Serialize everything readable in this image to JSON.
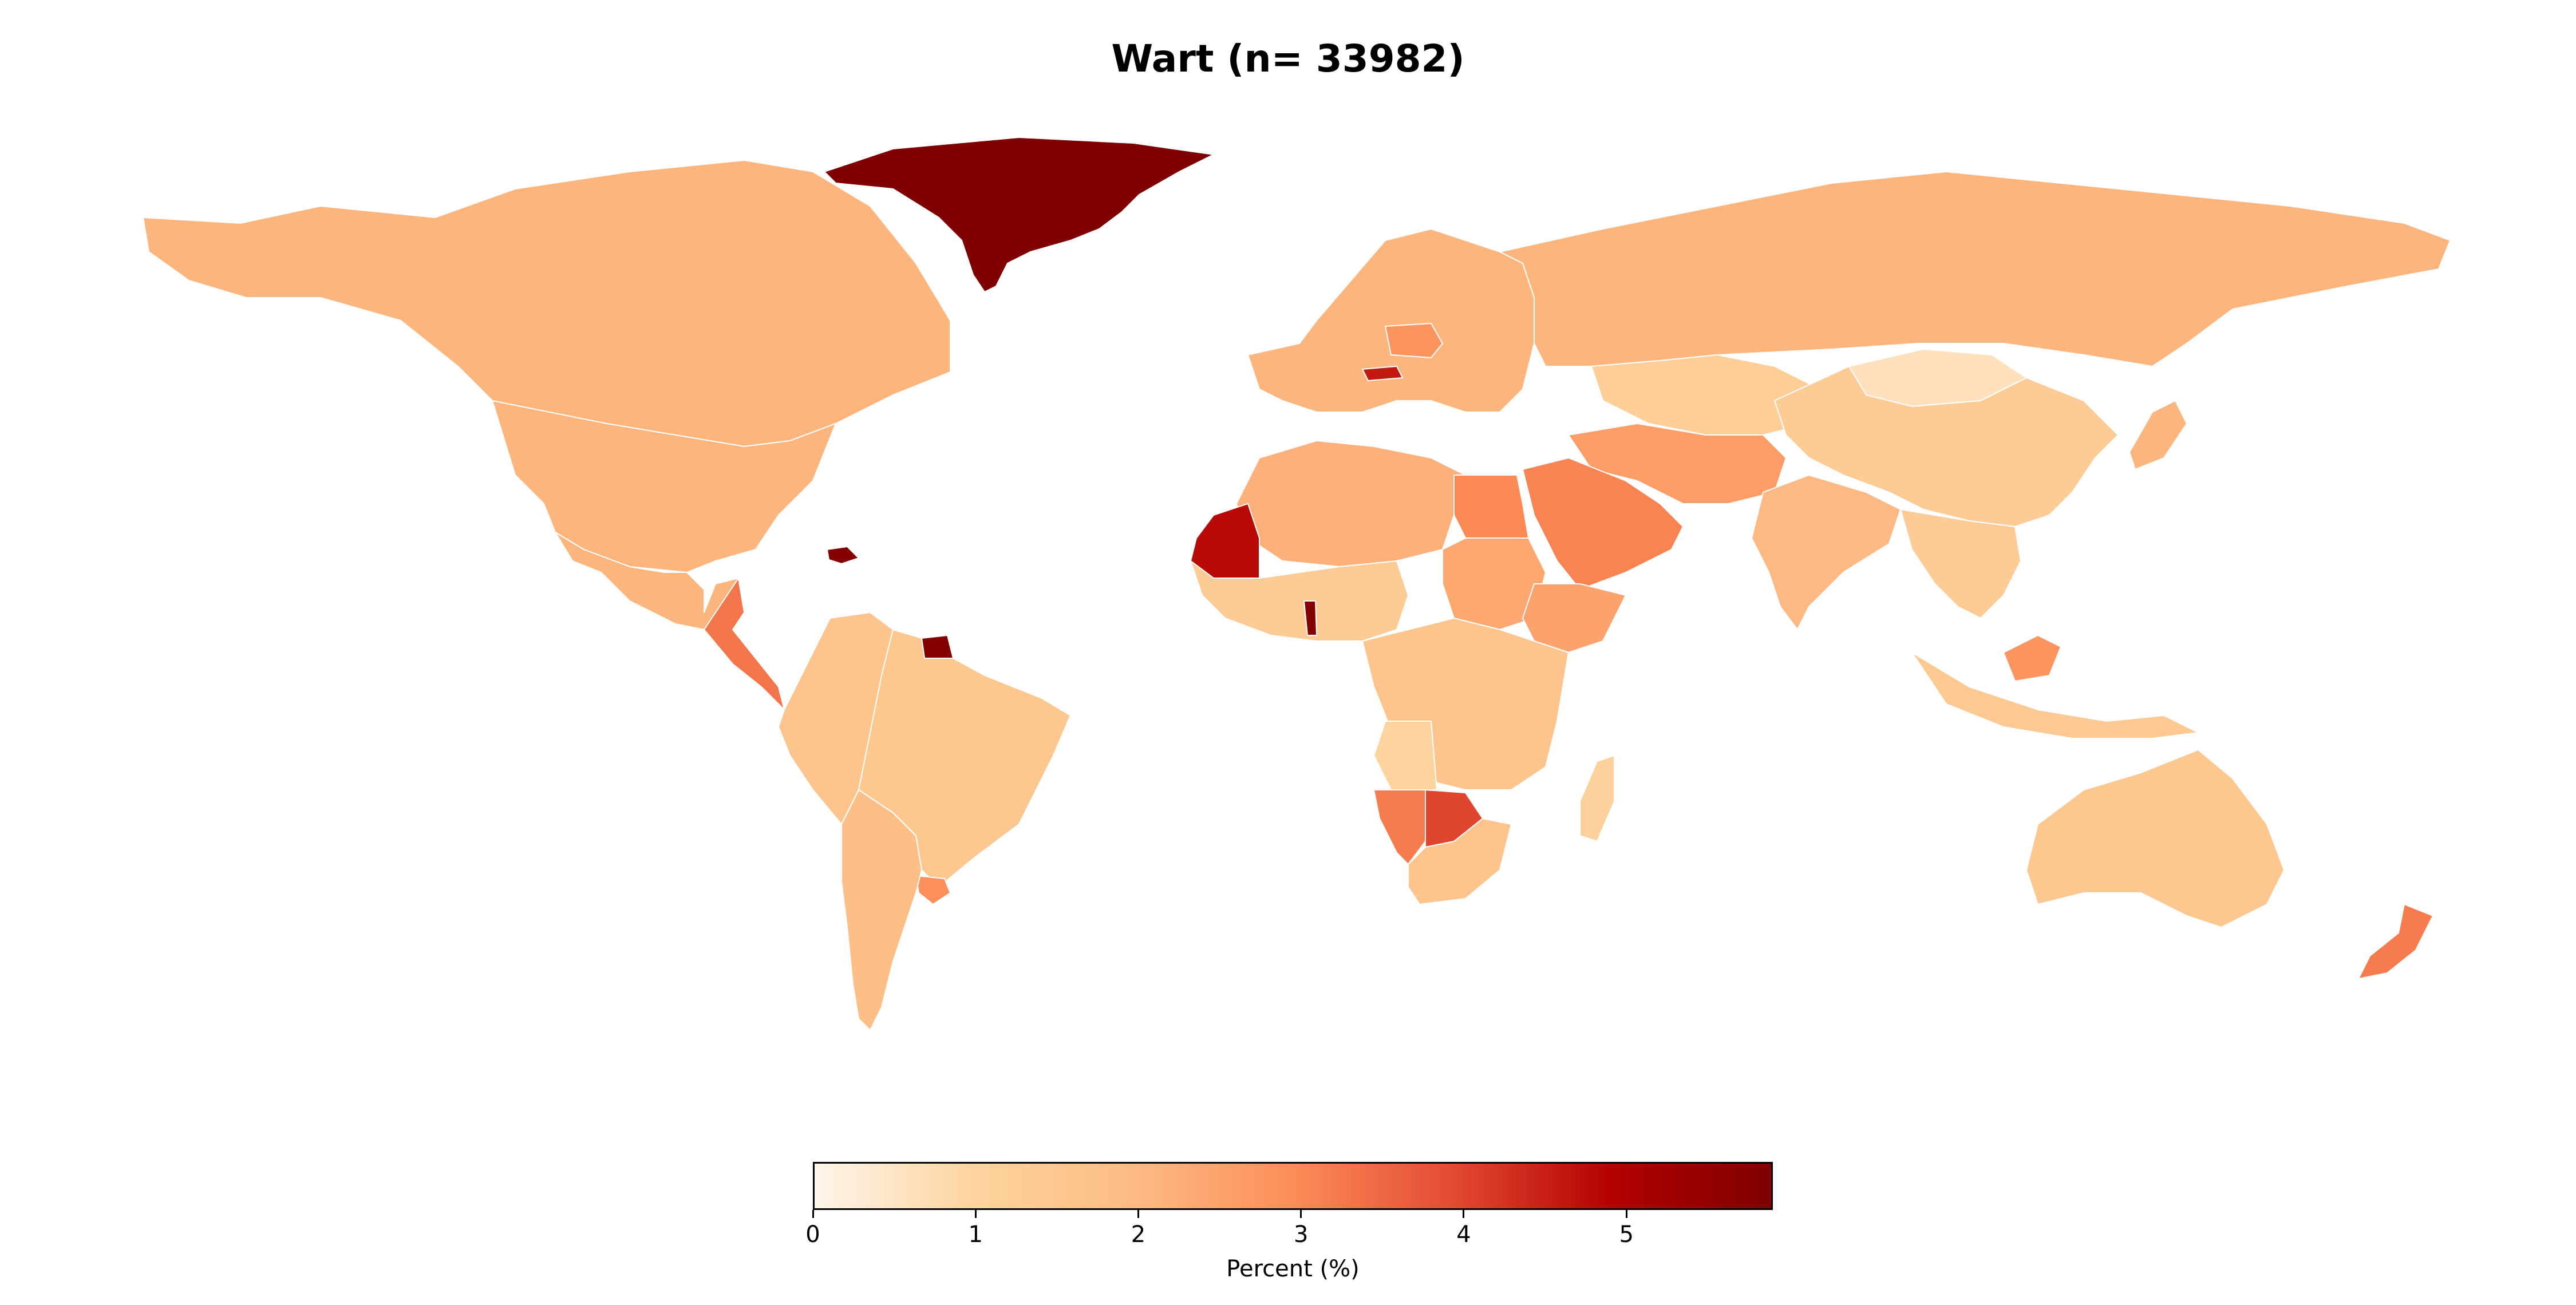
{
  "title": "Wart (n= 33982)",
  "colorbar": {
    "label": "Percent (%)",
    "ticks": [
      "0",
      "1",
      "2",
      "3",
      "4",
      "5"
    ],
    "min": 0,
    "max": 5.9,
    "colormap": [
      "#fff5eb",
      "#fdd49e",
      "#fdbb84",
      "#fc8d59",
      "#e34a33",
      "#b30000",
      "#7f0000"
    ]
  },
  "chart_data": {
    "type": "choropleth",
    "title": "Wart (n= 33982)",
    "value_label": "Percent (%)",
    "range": [
      0,
      5.9
    ],
    "regions": [
      {
        "name": "Greenland",
        "value": 5.9
      },
      {
        "name": "Canada",
        "value": 2.1
      },
      {
        "name": "USA",
        "value": 2.1
      },
      {
        "name": "Mexico",
        "value": 2.1
      },
      {
        "name": "Central America",
        "value": 3.3
      },
      {
        "name": "South America (west)",
        "value": 1.6
      },
      {
        "name": "Brazil",
        "value": 1.5
      },
      {
        "name": "Argentina",
        "value": 1.8
      },
      {
        "name": "Uruguay",
        "value": 2.9
      },
      {
        "name": "Suriname",
        "value": 5.8
      },
      {
        "name": "Dominican Republic",
        "value": 5.8
      },
      {
        "name": "Mauritania",
        "value": 4.8
      },
      {
        "name": "North Africa",
        "value": 2.2
      },
      {
        "name": "West Africa",
        "value": 1.3
      },
      {
        "name": "Benin",
        "value": 5.8
      },
      {
        "name": "Egypt",
        "value": 3.0
      },
      {
        "name": "Sudan",
        "value": 2.4
      },
      {
        "name": "Ethiopia",
        "value": 2.5
      },
      {
        "name": "Central Africa",
        "value": 1.6
      },
      {
        "name": "Angola",
        "value": 1.0
      },
      {
        "name": "Namibia",
        "value": 3.2
      },
      {
        "name": "Botswana",
        "value": 4.0
      },
      {
        "name": "South Africa",
        "value": 1.6
      },
      {
        "name": "Madagascar",
        "value": 1.1
      },
      {
        "name": "Europe",
        "value": 2.1
      },
      {
        "name": "Austria",
        "value": 4.6
      },
      {
        "name": "Poland",
        "value": 2.8
      },
      {
        "name": "Russia",
        "value": 2.1
      },
      {
        "name": "Kazakhstan",
        "value": 1.2
      },
      {
        "name": "China",
        "value": 1.3
      },
      {
        "name": "Mongolia",
        "value": 0.6
      },
      {
        "name": "Saudi Arabia",
        "value": 3.1
      },
      {
        "name": "Iran",
        "value": 2.6
      },
      {
        "name": "India",
        "value": 2.0
      },
      {
        "name": "Southeast Asia",
        "value": 1.3
      },
      {
        "name": "Borneo (Malaysia)",
        "value": 2.8
      },
      {
        "name": "Indonesia",
        "value": 1.4
      },
      {
        "name": "Japan",
        "value": 2.1
      },
      {
        "name": "Australia",
        "value": 1.5
      },
      {
        "name": "New Zealand",
        "value": 3.2
      }
    ]
  }
}
